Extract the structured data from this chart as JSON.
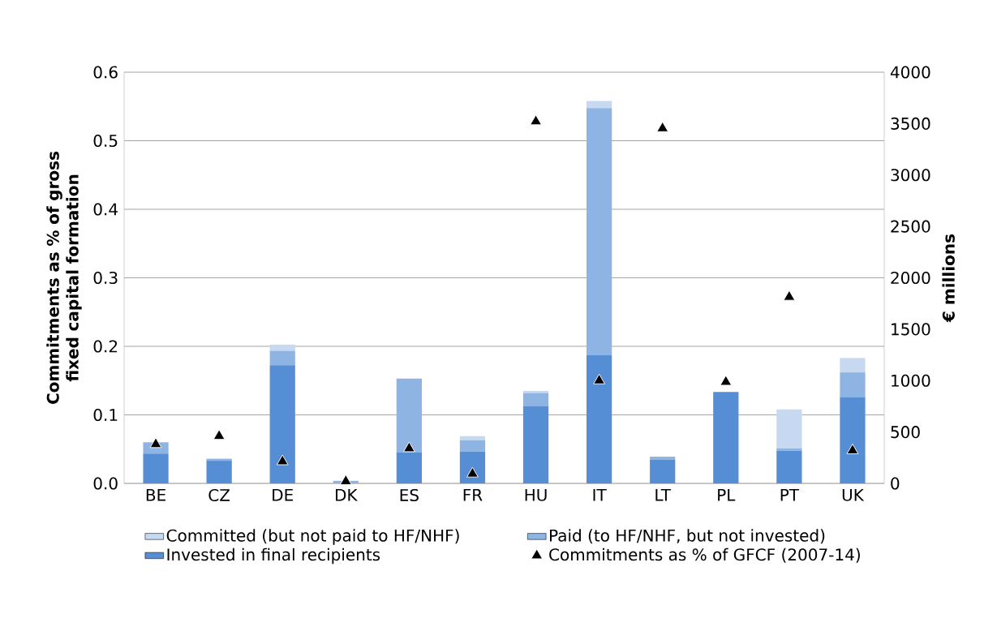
{
  "chart_data": {
    "type": "bar",
    "stacked": true,
    "categories": [
      "BE",
      "CZ",
      "DE",
      "DK",
      "ES",
      "FR",
      "HU",
      "IT",
      "LT",
      "PL",
      "PT",
      "UK"
    ],
    "ylabel": "Commitments as % of gross fixed capital formation",
    "y2label": "€ millions",
    "ylim": [
      0,
      0.6
    ],
    "yticks": [
      {
        "value": 0,
        "label": "0.0"
      },
      0.1,
      0.2,
      0.3,
      0.4,
      0.5,
      0.6
    ],
    "y2lim": [
      0,
      4000
    ],
    "y2ticks": [
      0,
      500,
      1000,
      1500,
      2000,
      2500,
      3000,
      3500,
      4000
    ],
    "grid": "y",
    "legend": "bottom",
    "series": [
      {
        "name": "Invested in final recipients",
        "color": "#558ed5",
        "axis": "y2",
        "values": [
          290,
          220,
          1150,
          null,
          300,
          310,
          750,
          1250,
          230,
          890,
          320,
          840
        ]
      },
      {
        "name": "Paid (to HF/NHF, but not invested)",
        "color": "#8eb4e3",
        "axis": "y2",
        "values": [
          110,
          20,
          140,
          25,
          720,
          110,
          130,
          2400,
          30,
          0,
          20,
          240
        ]
      },
      {
        "name": "Committed (but not paid to HF/NHF)",
        "color": "#c6d9f1",
        "axis": "y2",
        "values": [
          0,
          0,
          60,
          0,
          0,
          40,
          20,
          70,
          0,
          0,
          380,
          140
        ]
      },
      {
        "name": "Commitments as % of GFCF (2007-14)",
        "type": "scatter",
        "marker": "triangle",
        "color": "#000000",
        "values": [
          0.057,
          0.069,
          0.032,
          0.003,
          0.051,
          0.014,
          0.528,
          0.15,
          0.518,
          0.148,
          0.272,
          0.048
        ]
      }
    ]
  }
}
